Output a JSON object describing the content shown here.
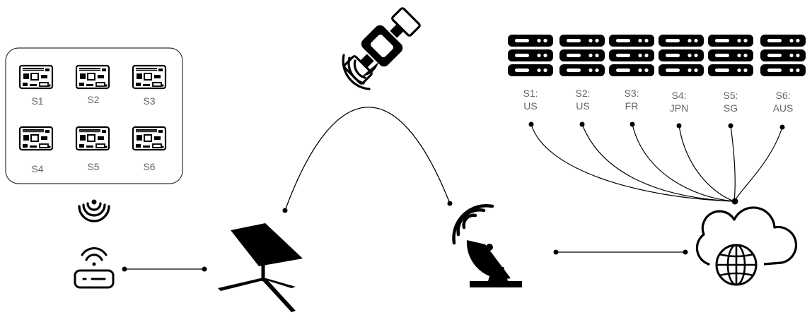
{
  "sensors": [
    {
      "label": "S1"
    },
    {
      "label": "S2"
    },
    {
      "label": "S3"
    },
    {
      "label": "S4"
    },
    {
      "label": "S5"
    },
    {
      "label": "S6"
    }
  ],
  "servers": [
    {
      "line1": "S1:",
      "line2": "US"
    },
    {
      "line1": "S2:",
      "line2": "US"
    },
    {
      "line1": "S3:",
      "line2": "FR"
    },
    {
      "line1": "S4:",
      "line2": "JPN"
    },
    {
      "line1": "S5:",
      "line2": "SG"
    },
    {
      "line1": "S6:",
      "line2": "AUS"
    }
  ],
  "icons": {
    "board": "raspberry-pi-board-icon",
    "wifi_signal": "wireless-signal-icon",
    "router": "wifi-router-icon",
    "dish": "starlink-dish-icon",
    "satellite": "satellite-icon",
    "ground_station": "ground-station-dish-icon",
    "server": "server-rack-icon",
    "cloud": "cloud-internet-icon"
  },
  "colors": {
    "stroke": "#000000",
    "label": "#666666",
    "box_border": "#333333"
  }
}
